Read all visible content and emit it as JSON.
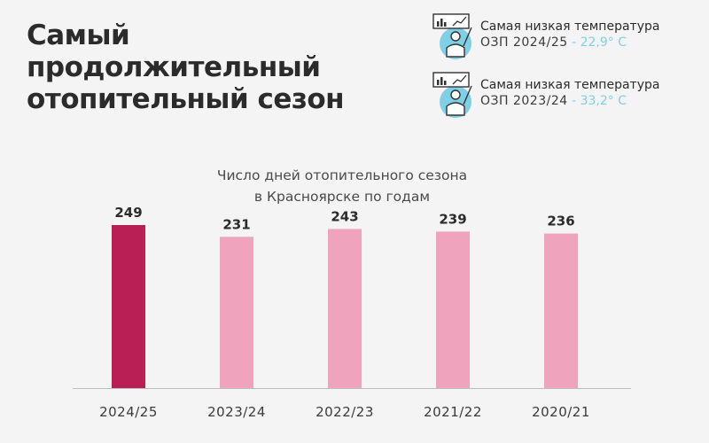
{
  "title_lines": [
    "Самый",
    "продолжительный",
    "отопительный сезон"
  ],
  "info_cards": [
    {
      "icon": "presenter-chart-icon",
      "label": "Самая низкая температура",
      "period": "ОЗП  2024/25",
      "value": " - 22,9° С"
    },
    {
      "icon": "presenter-chart-icon",
      "label": "Самая низкая температура",
      "period": "ОЗП  2023/24",
      "value": " - 33,2° С"
    }
  ],
  "colors": {
    "highlight": "#b91f55",
    "bar": "#f0a3bd",
    "accent": "#7fd0e6",
    "axis": "#bdbdbd"
  },
  "chart_data": {
    "type": "bar",
    "title_lines": [
      "Число дней отопительного сезона",
      "в Красноярске по годам"
    ],
    "categories": [
      "2024/25",
      "2023/24",
      "2022/23",
      "2021/22",
      "2020/21"
    ],
    "values": [
      249,
      231,
      243,
      239,
      236
    ],
    "highlight_index": 0,
    "xlabel": "",
    "ylabel": "",
    "grid": false,
    "legend": "none"
  }
}
